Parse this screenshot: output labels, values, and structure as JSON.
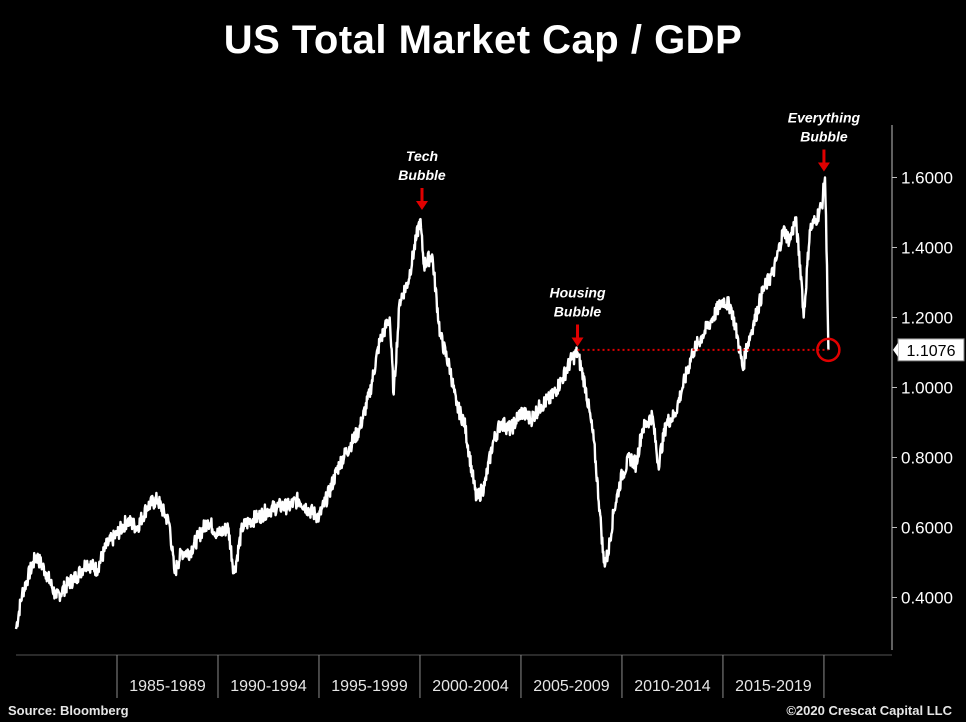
{
  "chart_data": {
    "type": "line",
    "title": "US Total Market Cap / GDP",
    "xlabel": "",
    "ylabel": "",
    "x_range": [
      1980.0,
      2020.3
    ],
    "ylim": [
      0.25,
      1.75
    ],
    "y_ticks": [
      "0.4000",
      "0.6000",
      "0.8000",
      "1.0000",
      "1.2000",
      "1.4000",
      "1.6000"
    ],
    "x_tick_labels": [
      "1985-1989",
      "1990-1994",
      "1995-1999",
      "2000-2004",
      "2005-2009",
      "2010-2014",
      "2015-2019"
    ],
    "grid": false,
    "line_color": "#ffffff",
    "series": [
      {
        "x": [
          1980.0,
          1980.3,
          1980.6,
          1981.0,
          1981.5,
          1982.0,
          1982.6,
          1983.0,
          1983.5,
          1984.0,
          1984.5,
          1985.0,
          1985.5,
          1986.0,
          1986.5,
          1987.0,
          1987.6,
          1987.85,
          1988.2,
          1988.6,
          1989.0,
          1989.5,
          1990.0,
          1990.5,
          1990.8,
          1991.2,
          1991.6,
          1992.0,
          1992.5,
          1993.0,
          1993.5,
          1994.0,
          1994.5,
          1995.0,
          1995.5,
          1996.0,
          1996.5,
          1997.0,
          1997.5,
          1998.0,
          1998.5,
          1998.7,
          1999.0,
          1999.4,
          1999.8,
          2000.0,
          2000.2,
          2000.6,
          2001.0,
          2001.5,
          2001.8,
          2002.2,
          2002.6,
          2002.8,
          2003.2,
          2003.6,
          2004.0,
          2004.5,
          2005.0,
          2005.5,
          2006.0,
          2006.5,
          2007.0,
          2007.5,
          2007.8,
          2008.2,
          2008.6,
          2008.9,
          2009.1,
          2009.3,
          2009.6,
          2010.0,
          2010.4,
          2010.7,
          2011.0,
          2011.5,
          2011.8,
          2012.2,
          2012.6,
          2013.0,
          2013.5,
          2014.0,
          2014.5,
          2015.0,
          2015.4,
          2015.7,
          2016.0,
          2016.1,
          2016.5,
          2017.0,
          2017.5,
          2018.0,
          2018.3,
          2018.6,
          2018.9,
          2019.0,
          2019.3,
          2019.6,
          2019.9,
          2020.05,
          2020.15,
          2020.22
        ],
        "values": [
          0.31,
          0.41,
          0.46,
          0.52,
          0.47,
          0.4,
          0.44,
          0.46,
          0.5,
          0.48,
          0.55,
          0.58,
          0.62,
          0.6,
          0.66,
          0.68,
          0.61,
          0.47,
          0.53,
          0.53,
          0.57,
          0.62,
          0.58,
          0.6,
          0.47,
          0.6,
          0.62,
          0.63,
          0.65,
          0.66,
          0.66,
          0.68,
          0.65,
          0.63,
          0.7,
          0.78,
          0.83,
          0.88,
          0.98,
          1.13,
          1.2,
          0.98,
          1.25,
          1.3,
          1.42,
          1.48,
          1.35,
          1.38,
          1.15,
          1.05,
          0.95,
          0.9,
          0.75,
          0.68,
          0.72,
          0.84,
          0.9,
          0.88,
          0.93,
          0.91,
          0.95,
          0.97,
          1.02,
          1.08,
          1.1,
          1.0,
          0.85,
          0.65,
          0.5,
          0.52,
          0.65,
          0.75,
          0.8,
          0.78,
          0.88,
          0.92,
          0.78,
          0.9,
          0.92,
          1.0,
          1.1,
          1.15,
          1.2,
          1.25,
          1.23,
          1.15,
          1.05,
          1.1,
          1.18,
          1.28,
          1.33,
          1.45,
          1.42,
          1.48,
          1.3,
          1.2,
          1.45,
          1.48,
          1.52,
          1.6,
          1.35,
          1.1076
        ]
      }
    ],
    "annotations": [
      {
        "text_lines": [
          "Tech",
          "Bubble"
        ],
        "x": 2000.1,
        "y": 1.49
      },
      {
        "text_lines": [
          "Housing",
          "Bubble"
        ],
        "x": 2007.8,
        "y": 1.1
      },
      {
        "text_lines": [
          "Everything",
          "Bubble"
        ],
        "x": 2020.0,
        "y": 1.6
      }
    ],
    "reference_line": {
      "y": 1.1076,
      "x_start": 2007.8,
      "x_end": 2020.22,
      "style": "dotted",
      "color": "#e00000"
    },
    "current_value_label": "1.1076",
    "annotation_color": "#e00000"
  },
  "footer": {
    "source": "Source: Bloomberg",
    "copyright": "©2020 Crescat Capital LLC"
  }
}
